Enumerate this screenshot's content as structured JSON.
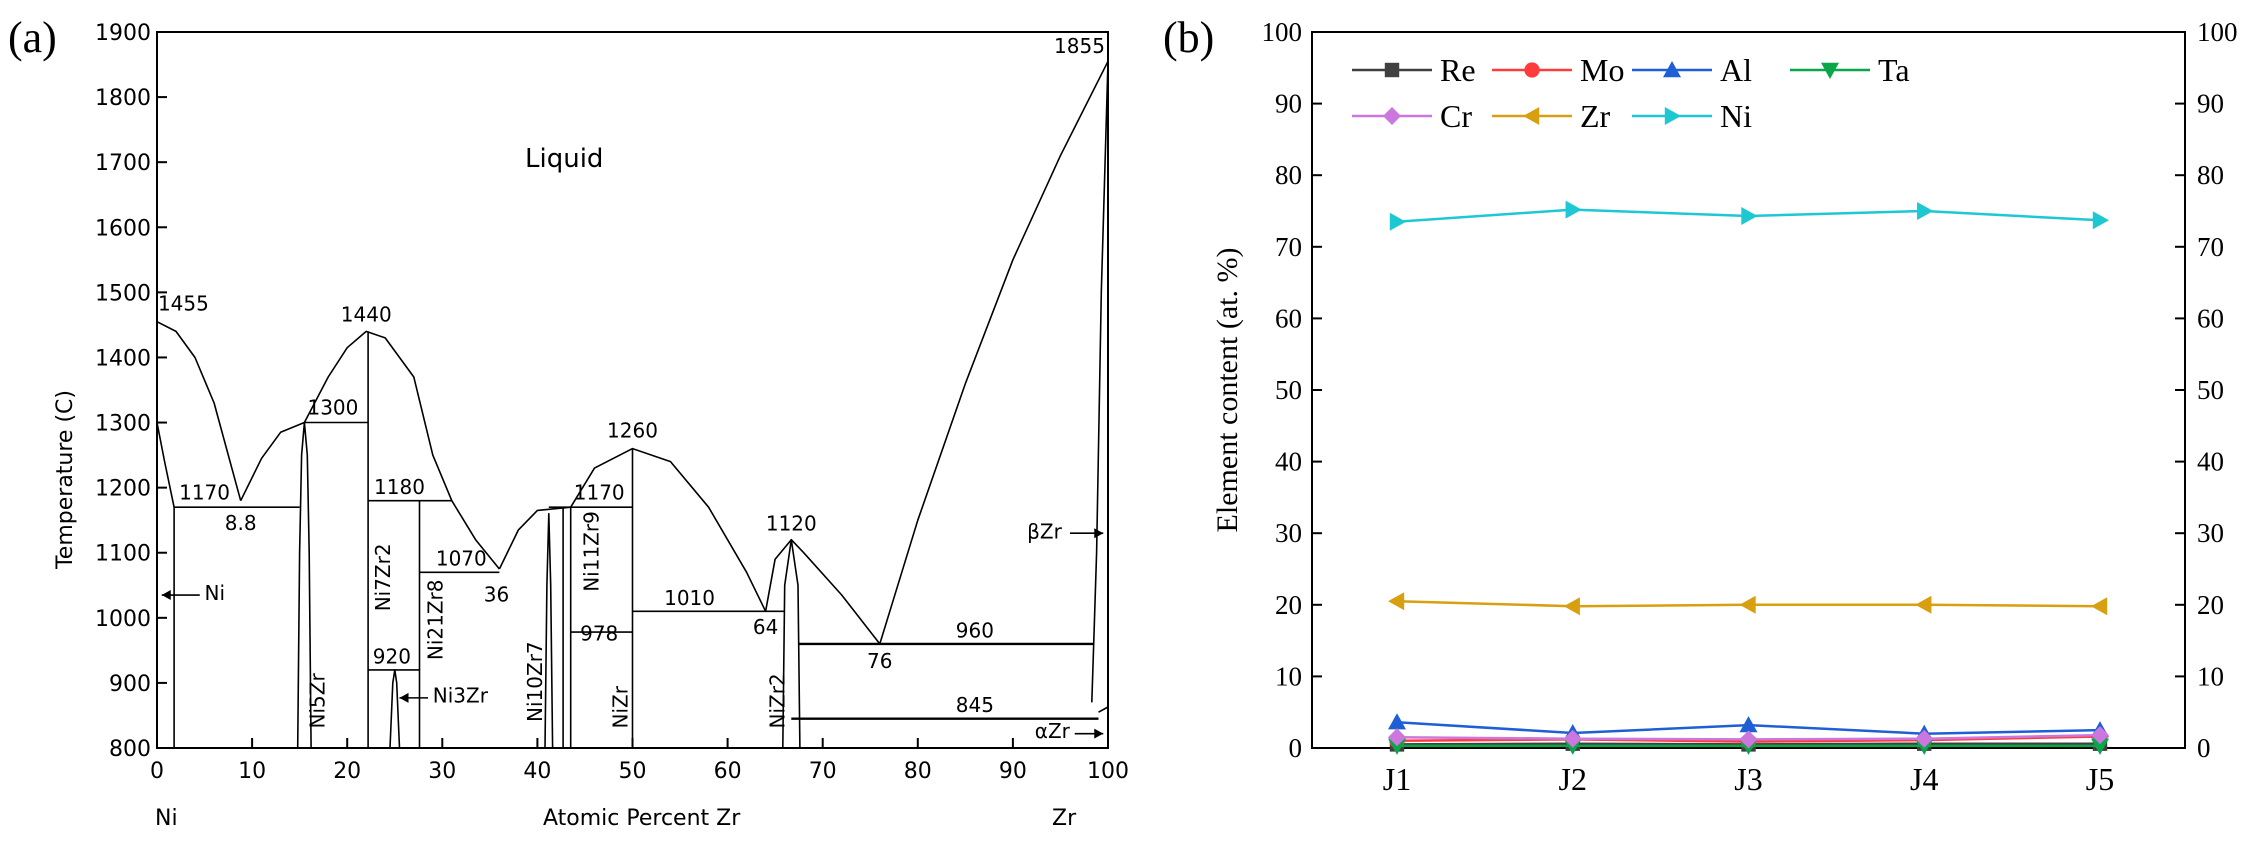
{
  "chart_data": [
    {
      "type": "phase-diagram",
      "panel_label": "(a)",
      "title": "",
      "xlabel": "Atomic Percent  Zr",
      "ylabel": "Temperature (C)",
      "xlim": [
        0,
        100
      ],
      "ylim": [
        800,
        1900
      ],
      "xticks": [
        0,
        10,
        20,
        30,
        40,
        50,
        60,
        70,
        80,
        90,
        100
      ],
      "yticks": [
        800,
        900,
        1000,
        1100,
        1200,
        1300,
        1400,
        1500,
        1600,
        1700,
        1800,
        1900
      ],
      "end_labels": {
        "left": "Ni",
        "right": "Zr"
      },
      "region_label": "Liquid",
      "temperature_labels": [
        {
          "text": "1455",
          "x": 0,
          "t": 1455
        },
        {
          "text": "1440",
          "x": 22,
          "t": 1440
        },
        {
          "text": "1300",
          "x": 15.5,
          "t": 1300
        },
        {
          "text": "1260",
          "x": 50,
          "t": 1260
        },
        {
          "text": "1855",
          "x": 100,
          "t": 1855
        },
        {
          "text": "1180",
          "x": 22,
          "t": 1180
        },
        {
          "text": "1170",
          "x": 0,
          "t": 1170
        },
        {
          "text": "1170",
          "x": 43.5,
          "t": 1170
        },
        {
          "text": "1120",
          "x": 66.7,
          "t": 1120
        },
        {
          "text": "1070",
          "x": 27.5,
          "t": 1070
        },
        {
          "text": "1010",
          "x": 50,
          "t": 1010
        },
        {
          "text": "978",
          "x": 43.5,
          "t": 978
        },
        {
          "text": "960",
          "x": 66.7,
          "t": 960
        },
        {
          "text": "920",
          "x": 22,
          "t": 920
        },
        {
          "text": "845",
          "x": 66.7,
          "t": 845
        }
      ],
      "composition_labels": [
        {
          "text": "8.8",
          "x": 8.8
        },
        {
          "text": "36",
          "x": 36
        },
        {
          "text": "64",
          "x": 64
        },
        {
          "text": "76",
          "x": 76
        }
      ],
      "phases": [
        {
          "text": "Ni",
          "x": 0.5
        },
        {
          "text": "Ni5Zr",
          "x": 16.7
        },
        {
          "text": "Ni7Zr2",
          "x": 22.2
        },
        {
          "text": "Ni21Zr8",
          "x": 27.6
        },
        {
          "text": "Ni3Zr",
          "x": 25
        },
        {
          "text": "Ni10Zr7",
          "x": 41.2
        },
        {
          "text": "Ni11Zr9",
          "x": 45
        },
        {
          "text": "NiZr",
          "x": 50
        },
        {
          "text": "NiZr2",
          "x": 66.7
        },
        {
          "text": "βZr",
          "x": 98
        },
        {
          "text": "αZr",
          "x": 99
        }
      ]
    },
    {
      "type": "line",
      "panel_label": "(b)",
      "title": "",
      "xlabel": "",
      "ylabel": "Element content (at. %)",
      "categories": [
        "J1",
        "J2",
        "J3",
        "J4",
        "J5"
      ],
      "ylim": [
        0,
        100
      ],
      "yticks": [
        0,
        10,
        20,
        30,
        40,
        50,
        60,
        70,
        80,
        90,
        100
      ],
      "legend_position": "top-left",
      "series": [
        {
          "name": "Re",
          "color": "#404040",
          "marker": "square",
          "values": [
            0.5,
            0.6,
            0.5,
            0.6,
            0.6
          ]
        },
        {
          "name": "Mo",
          "color": "#ff3b3b",
          "marker": "circle",
          "values": [
            1.0,
            1.2,
            0.9,
            1.1,
            1.6
          ]
        },
        {
          "name": "Al",
          "color": "#1f5fd6",
          "marker": "triangle-up",
          "values": [
            3.6,
            2.1,
            3.2,
            2.0,
            2.5
          ]
        },
        {
          "name": "Ta",
          "color": "#0aa64a",
          "marker": "triangle-down",
          "values": [
            0.3,
            0.3,
            0.3,
            0.3,
            0.3
          ]
        },
        {
          "name": "Cr",
          "color": "#cc77dd",
          "marker": "diamond",
          "values": [
            1.5,
            1.3,
            1.2,
            1.3,
            1.8
          ]
        },
        {
          "name": "Zr",
          "color": "#d8a010",
          "marker": "triangle-left",
          "values": [
            20.5,
            19.8,
            20.0,
            20.0,
            19.8
          ]
        },
        {
          "name": "Ni",
          "color": "#1ec8d2",
          "marker": "triangle-right",
          "values": [
            73.5,
            75.2,
            74.3,
            75.0,
            73.7
          ]
        }
      ]
    }
  ]
}
